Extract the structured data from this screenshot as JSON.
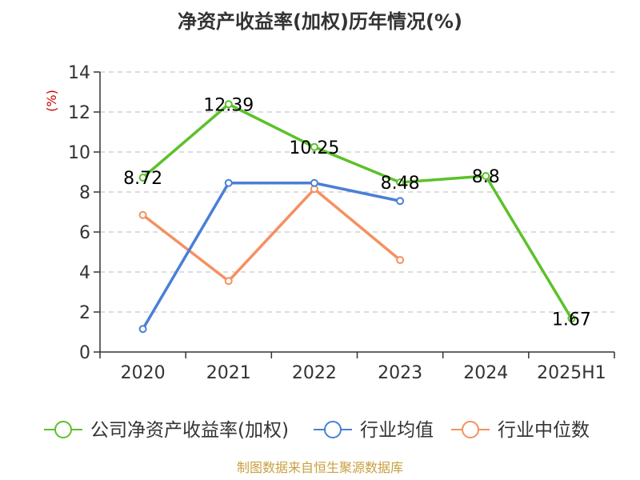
{
  "chart_data": {
    "type": "line",
    "title": "净资产收益率(加权)历年情况(%)",
    "ylabel": "(%)",
    "categories": [
      "2020",
      "2021",
      "2022",
      "2023",
      "2024",
      "2025H1"
    ],
    "ylim": [
      0,
      14
    ],
    "yticks": [
      0,
      2,
      4,
      6,
      8,
      10,
      12,
      14
    ],
    "grid": true,
    "legend_position": "bottom",
    "series": [
      {
        "name": "公司净资产收益率(加权)",
        "color": "#5cc12a",
        "values": [
          8.72,
          12.39,
          10.25,
          8.48,
          8.8,
          1.67
        ],
        "labels": [
          "8.72",
          "12.39",
          "10.25",
          "8.48",
          "8.8",
          "1.67"
        ]
      },
      {
        "name": "行业均值",
        "color": "#4a7fd6",
        "values": [
          1.15,
          8.45,
          8.45,
          7.55,
          null,
          null
        ]
      },
      {
        "name": "行业中位数",
        "color": "#f59060",
        "values": [
          6.85,
          3.55,
          8.15,
          4.6,
          null,
          null
        ]
      }
    ]
  },
  "footer": {
    "source": "制图数据来自恒生聚源数据库"
  }
}
